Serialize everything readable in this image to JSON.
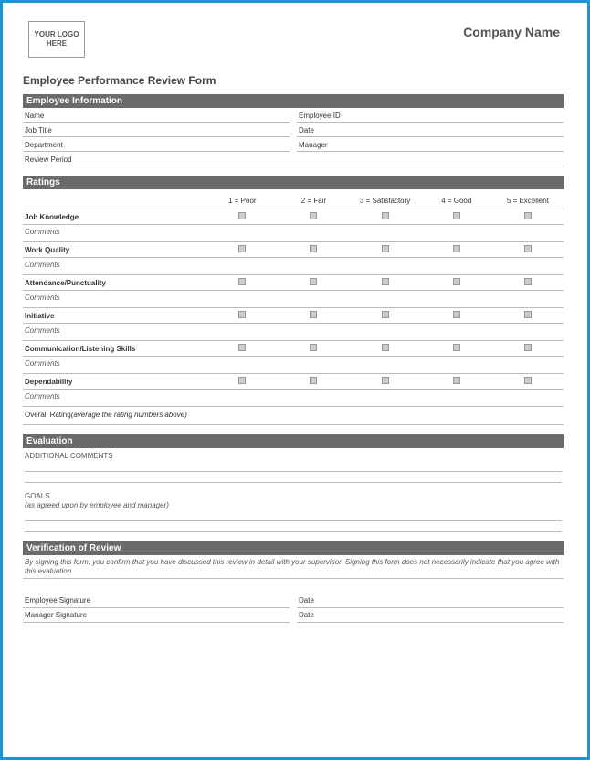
{
  "colors": {
    "frame_border": "#1b95d4",
    "section_header_bg": "#6a6a6a",
    "section_header_text": "#ffffff",
    "rule": "#bbbbbb",
    "checkbox_fill": "#cccccc",
    "checkbox_border": "#999999",
    "text_primary": "#333333",
    "text_muted": "#555555",
    "background": "#ffffff"
  },
  "typography": {
    "family": "Arial",
    "company_name_size_pt": 14,
    "form_title_size_pt": 12,
    "section_header_size_pt": 10,
    "body_size_pt": 8
  },
  "header": {
    "logo_text": "YOUR LOGO HERE",
    "company_name": "Company Name"
  },
  "form_title": "Employee Performance Review Form",
  "sections": {
    "employee_info": {
      "title": "Employee Information",
      "fields": {
        "name": "Name",
        "employee_id": "Employee ID",
        "job_title": "Job Title",
        "date": "Date",
        "department": "Department",
        "manager": "Manager",
        "review_period": "Review Period"
      }
    },
    "ratings": {
      "title": "Ratings",
      "scale": [
        "1 = Poor",
        "2 = Fair",
        "3 = Satisfactory",
        "4 = Good",
        "5 = Excellent"
      ],
      "comments_label": "Comments",
      "categories": [
        "Job Knowledge",
        "Work Quality",
        "Attendance/Punctuality",
        "Initiative",
        "Communication/Listening Skills",
        "Dependability"
      ],
      "overall_label": "Overall Rating",
      "overall_hint": "(average the rating numbers above)"
    },
    "evaluation": {
      "title": "Evaluation",
      "additional_comments": "ADDITIONAL COMMENTS",
      "goals": "GOALS",
      "goals_sub": "(as agreed upon by employee and manager)"
    },
    "verification": {
      "title": "Verification of Review",
      "note": "By signing this form, you confirm that you have discussed this review in detail with your supervisor. Signing this form does not necessarily indicate that you agree with this evaluation.",
      "employee_signature": "Employee Signature",
      "manager_signature": "Manager Signature",
      "date": "Date"
    }
  }
}
